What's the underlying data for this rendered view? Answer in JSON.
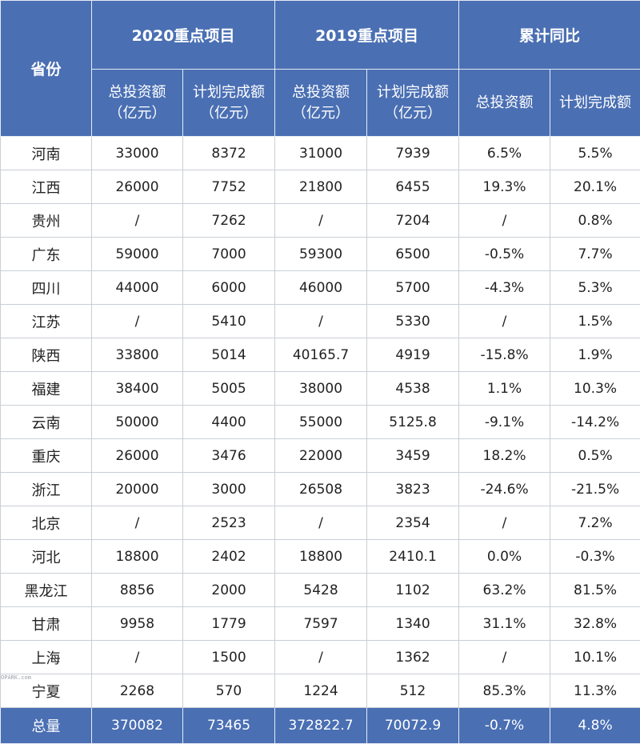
{
  "header": {
    "province": "省份",
    "group_2020": "2020重点项目",
    "group_2019": "2019重点项目",
    "group_yoy": "累计同比",
    "sub_total_invest": "总投资额",
    "sub_plan_complete": "计划完成额",
    "unit": "（亿元）"
  },
  "rows": [
    {
      "province": "河南",
      "inv2020": "33000",
      "plan2020": "8372",
      "inv2019": "31000",
      "plan2019": "7939",
      "yoy_inv": "6.5%",
      "yoy_plan": "5.5%"
    },
    {
      "province": "江西",
      "inv2020": "26000",
      "plan2020": "7752",
      "inv2019": "21800",
      "plan2019": "6455",
      "yoy_inv": "19.3%",
      "yoy_plan": "20.1%"
    },
    {
      "province": "贵州",
      "inv2020": "/",
      "plan2020": "7262",
      "inv2019": "/",
      "plan2019": "7204",
      "yoy_inv": "/",
      "yoy_plan": "0.8%"
    },
    {
      "province": "广东",
      "inv2020": "59000",
      "plan2020": "7000",
      "inv2019": "59300",
      "plan2019": "6500",
      "yoy_inv": "-0.5%",
      "yoy_plan": "7.7%"
    },
    {
      "province": "四川",
      "inv2020": "44000",
      "plan2020": "6000",
      "inv2019": "46000",
      "plan2019": "5700",
      "yoy_inv": "-4.3%",
      "yoy_plan": "5.3%"
    },
    {
      "province": "江苏",
      "inv2020": "/",
      "plan2020": "5410",
      "inv2019": "/",
      "plan2019": "5330",
      "yoy_inv": "/",
      "yoy_plan": "1.5%"
    },
    {
      "province": "陕西",
      "inv2020": "33800",
      "plan2020": "5014",
      "inv2019": "40165.7",
      "plan2019": "4919",
      "yoy_inv": "-15.8%",
      "yoy_plan": "1.9%"
    },
    {
      "province": "福建",
      "inv2020": "38400",
      "plan2020": "5005",
      "inv2019": "38000",
      "plan2019": "4538",
      "yoy_inv": "1.1%",
      "yoy_plan": "10.3%"
    },
    {
      "province": "云南",
      "inv2020": "50000",
      "plan2020": "4400",
      "inv2019": "55000",
      "plan2019": "5125.8",
      "yoy_inv": "-9.1%",
      "yoy_plan": "-14.2%"
    },
    {
      "province": "重庆",
      "inv2020": "26000",
      "plan2020": "3476",
      "inv2019": "22000",
      "plan2019": "3459",
      "yoy_inv": "18.2%",
      "yoy_plan": "0.5%"
    },
    {
      "province": "浙江",
      "inv2020": "20000",
      "plan2020": "3000",
      "inv2019": "26508",
      "plan2019": "3823",
      "yoy_inv": "-24.6%",
      "yoy_plan": "-21.5%"
    },
    {
      "province": "北京",
      "inv2020": "/",
      "plan2020": "2523",
      "inv2019": "/",
      "plan2019": "2354",
      "yoy_inv": "/",
      "yoy_plan": "7.2%"
    },
    {
      "province": "河北",
      "inv2020": "18800",
      "plan2020": "2402",
      "inv2019": "18800",
      "plan2019": "2410.1",
      "yoy_inv": "0.0%",
      "yoy_plan": "-0.3%"
    },
    {
      "province": "黑龙江",
      "inv2020": "8856",
      "plan2020": "2000",
      "inv2019": "5428",
      "plan2019": "1102",
      "yoy_inv": "63.2%",
      "yoy_plan": "81.5%"
    },
    {
      "province": "甘肃",
      "inv2020": "9958",
      "plan2020": "1779",
      "inv2019": "7597",
      "plan2019": "1340",
      "yoy_inv": "31.1%",
      "yoy_plan": "32.8%"
    },
    {
      "province": "上海",
      "inv2020": "/",
      "plan2020": "1500",
      "inv2019": "/",
      "plan2019": "1362",
      "yoy_inv": "/",
      "yoy_plan": "10.1%"
    },
    {
      "province": "宁夏",
      "inv2020": "2268",
      "plan2020": "570",
      "inv2019": "1224",
      "plan2019": "512",
      "yoy_inv": "85.3%",
      "yoy_plan": "11.3%"
    }
  ],
  "total": {
    "province": "总量",
    "inv2020": "370082",
    "plan2020": "73465",
    "inv2019": "372822.7",
    "plan2019": "70072.9",
    "yoy_inv": "-0.7%",
    "yoy_plan": "4.8%"
  },
  "watermark": "OPARK.com"
}
